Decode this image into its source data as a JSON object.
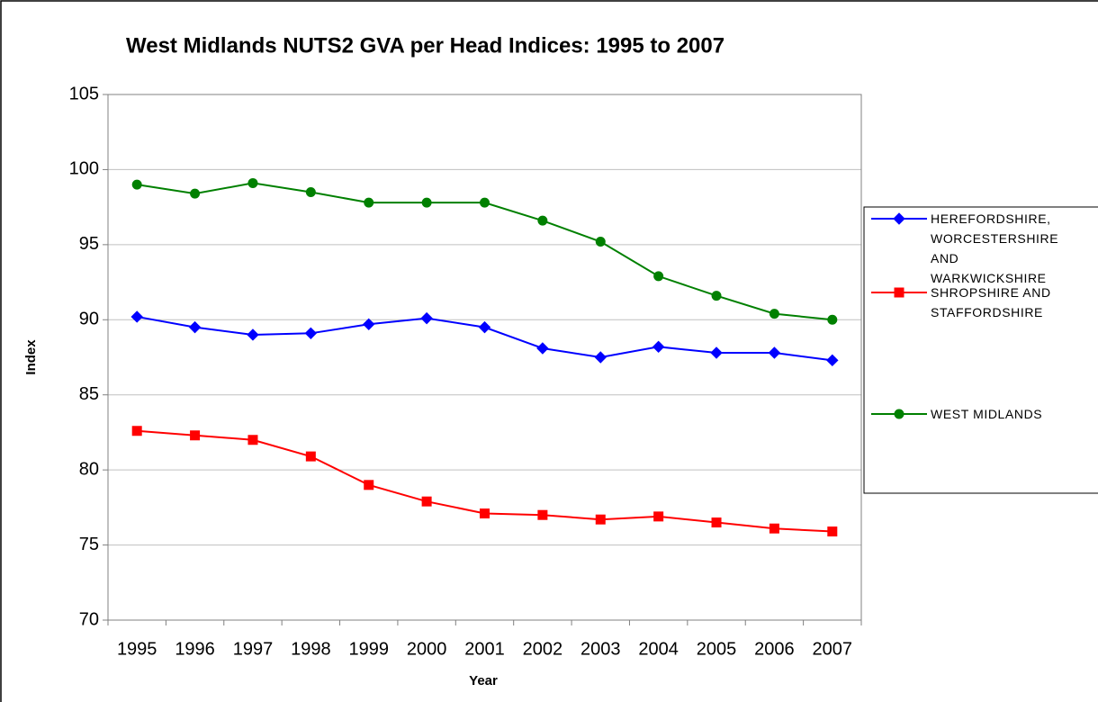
{
  "chart_data": {
    "type": "line",
    "title": "West Midlands NUTS2 GVA per Head Indices: 1995 to 2007",
    "x_label": "Year",
    "y_label": "Index",
    "categories": [
      "1995",
      "1996",
      "1997",
      "1998",
      "1999",
      "2000",
      "2001",
      "2002",
      "2003",
      "2004",
      "2005",
      "2006",
      "2007"
    ],
    "series": [
      {
        "name": "HEREFORDSHIRE, WORCESTERSHIRE AND WARKWICKSHIRE",
        "color": "#0000ff",
        "marker": "diamond",
        "values": [
          90.2,
          89.5,
          89.0,
          89.1,
          89.7,
          90.1,
          89.5,
          88.1,
          87.5,
          88.2,
          87.8,
          87.8,
          87.3
        ]
      },
      {
        "name": "SHROPSHIRE AND STAFFORDSHIRE",
        "color": "#ff0000",
        "marker": "square",
        "values": [
          82.6,
          82.3,
          82.0,
          80.9,
          79.0,
          77.9,
          77.1,
          77.0,
          76.7,
          76.9,
          76.5,
          76.1,
          75.9
        ]
      },
      {
        "name": "WEST MIDLANDS",
        "color": "#008000",
        "marker": "circle",
        "values": [
          99.0,
          98.4,
          99.1,
          98.5,
          97.8,
          97.8,
          97.8,
          96.6,
          95.2,
          92.9,
          91.6,
          90.4,
          90.0
        ]
      }
    ],
    "ylim": [
      70,
      105
    ],
    "yticks": [
      70,
      75,
      80,
      85,
      90,
      95,
      100,
      105
    ],
    "grid": true,
    "legend": "right"
  }
}
